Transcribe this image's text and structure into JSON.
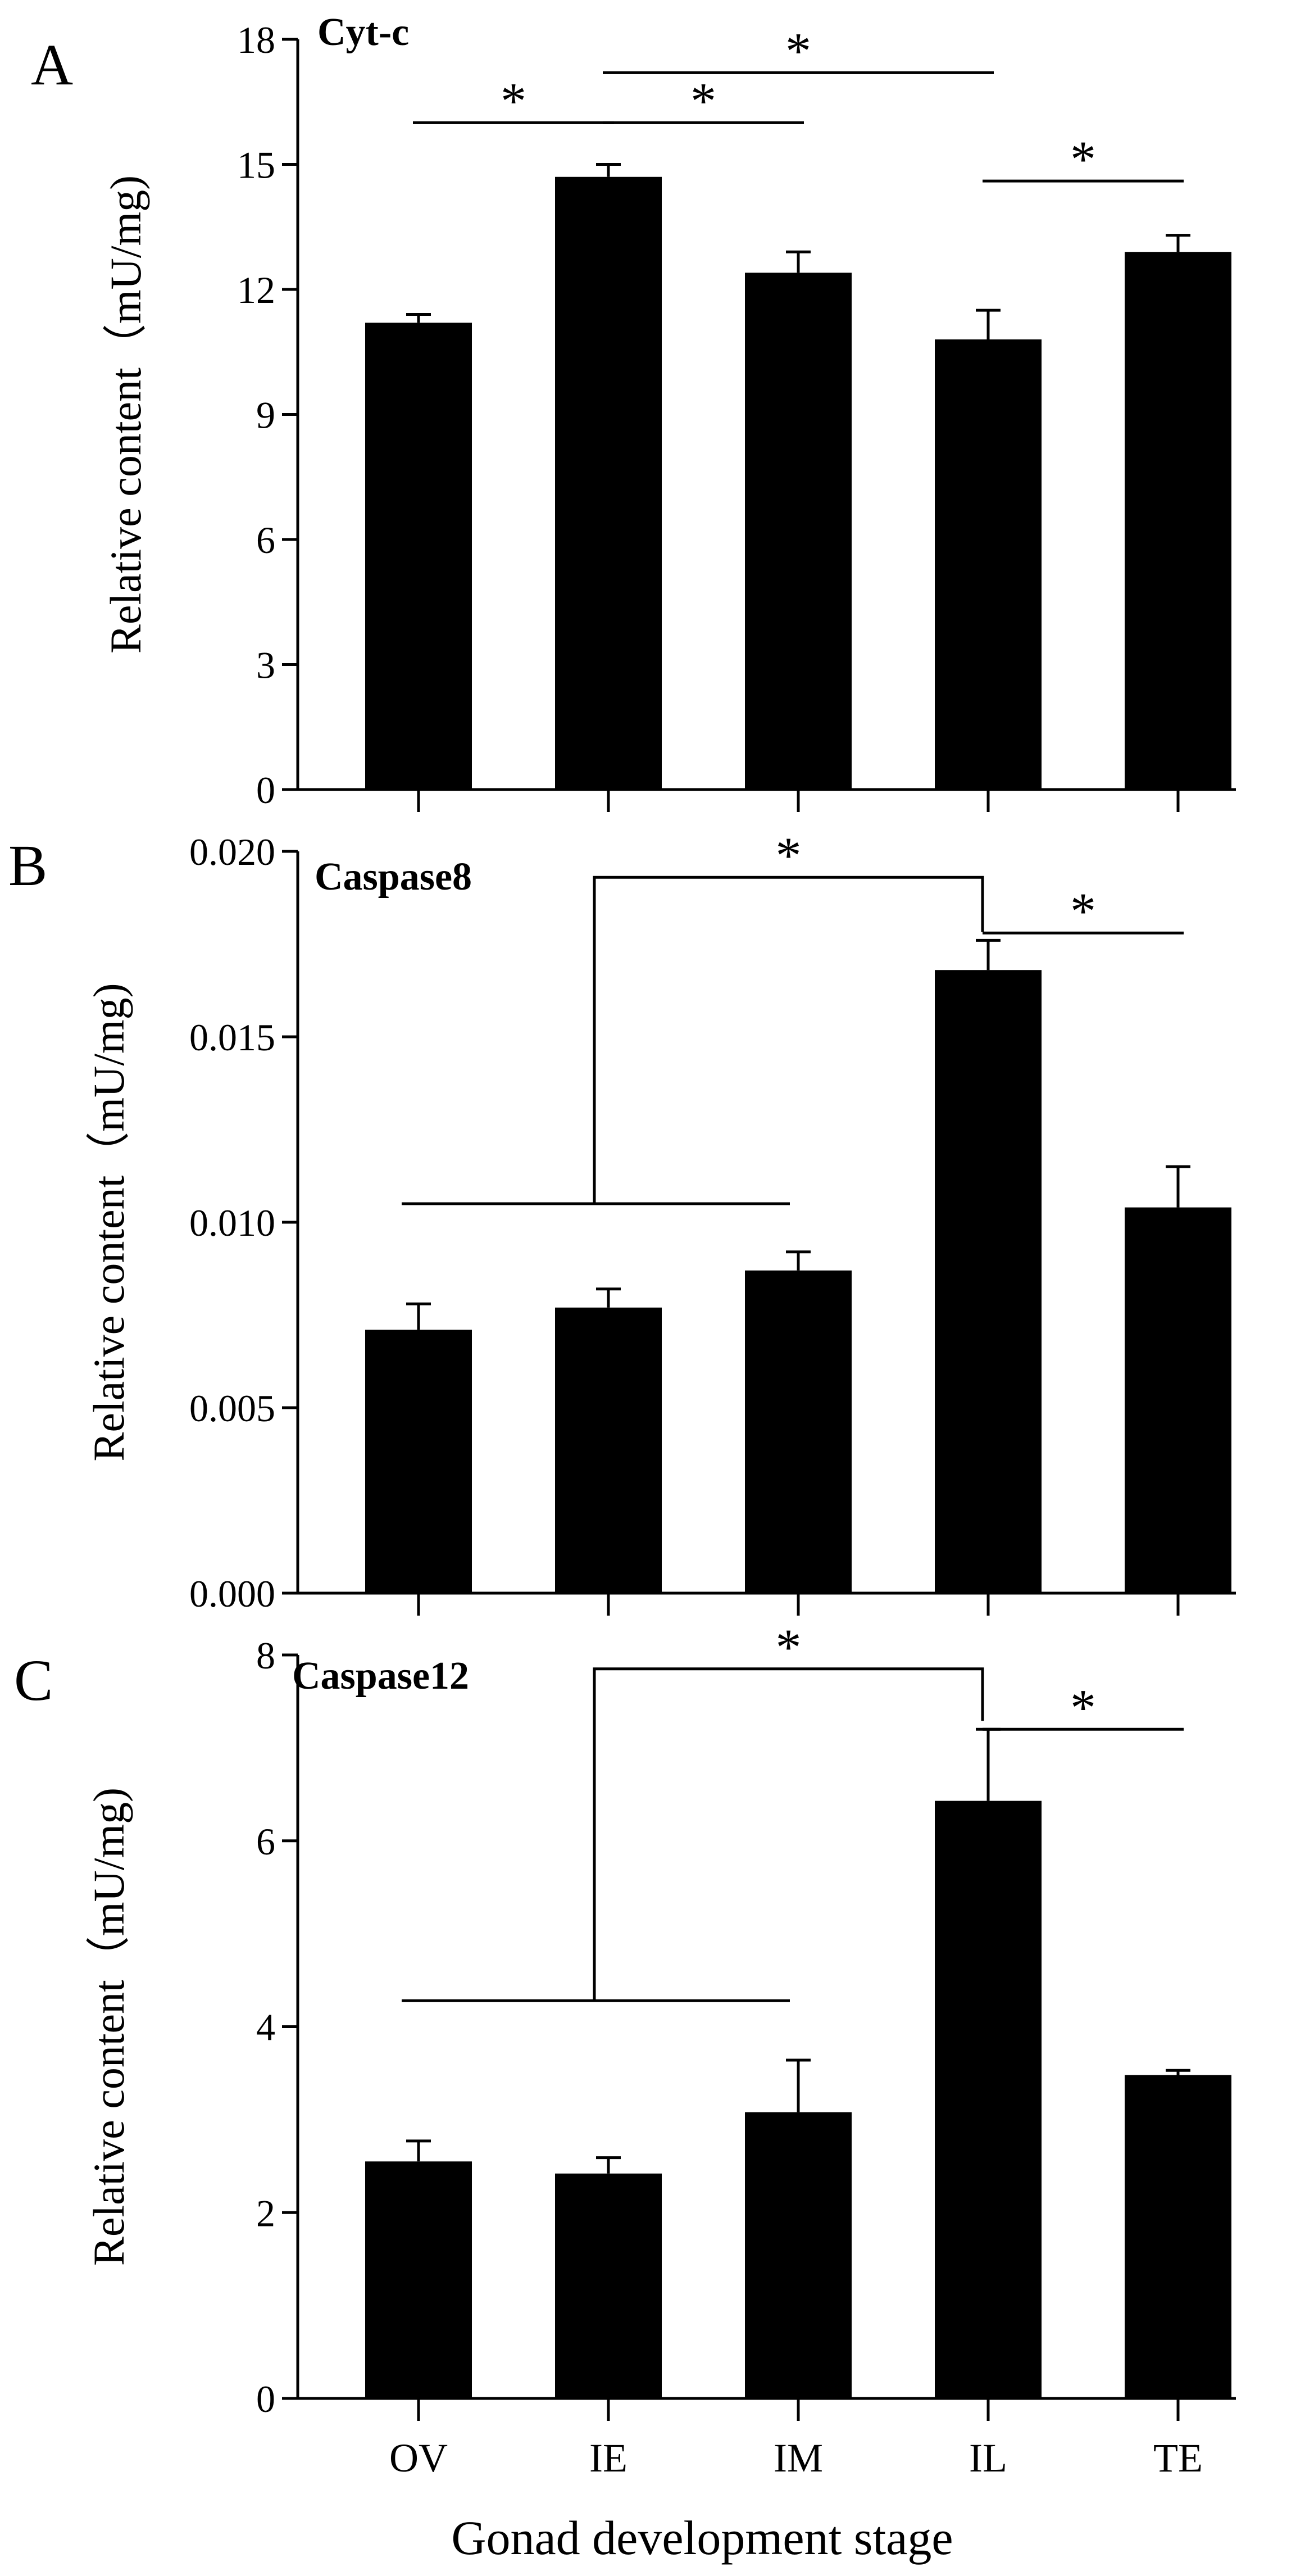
{
  "figure": {
    "x_axis_title": "Gonad development stage",
    "x_categories": [
      "OV",
      "IE",
      "IM",
      "IL",
      "TE"
    ],
    "bar_color": "#000000"
  },
  "chart_data": [
    {
      "type": "bar",
      "panel_label": "A",
      "title": "Cyt-c",
      "ylabel": "Relative content（mU/mg)",
      "xlabel": "",
      "categories": [
        "OV",
        "IE",
        "IM",
        "IL",
        "TE"
      ],
      "values": [
        11.2,
        14.7,
        12.4,
        10.8,
        12.9
      ],
      "errors": [
        0.2,
        0.3,
        0.5,
        0.7,
        0.4
      ],
      "ylim": [
        0,
        18
      ],
      "yticks": [
        0,
        3,
        6,
        9,
        12,
        15,
        18
      ],
      "ytick_labels": [
        "0",
        "3",
        "6",
        "9",
        "12",
        "15",
        "18"
      ],
      "significance": [
        {
          "kind": "line",
          "from": 0,
          "to": 1,
          "y": 16.0,
          "label": "*"
        },
        {
          "kind": "line",
          "from": 1,
          "to": 2,
          "y": 16.0,
          "label": "*"
        },
        {
          "kind": "line",
          "from": 1,
          "to": 3,
          "y": 17.2,
          "label": "*"
        },
        {
          "kind": "line",
          "from": 3,
          "to": 4,
          "y": 14.6,
          "label": "*"
        }
      ]
    },
    {
      "type": "bar",
      "panel_label": "B",
      "title": "Caspase8",
      "ylabel": "Relative content（mU/mg)",
      "xlabel": "",
      "categories": [
        "OV",
        "IE",
        "IM",
        "IL",
        "TE"
      ],
      "values": [
        0.0071,
        0.0077,
        0.0087,
        0.0168,
        0.0104
      ],
      "errors": [
        0.0007,
        0.0005,
        0.0005,
        0.0008,
        0.0011
      ],
      "ylim": [
        0,
        0.02
      ],
      "yticks": [
        0,
        0.005,
        0.01,
        0.015,
        0.02
      ],
      "ytick_labels": [
        "0.000",
        "0.005",
        "0.010",
        "0.015",
        "0.020"
      ],
      "significance": [
        {
          "kind": "group",
          "group_from": 0,
          "group_to": 2,
          "group_y": 0.0105,
          "riser_from": 1,
          "to": 3,
          "y": 0.0193,
          "label": "*"
        },
        {
          "kind": "line",
          "from": 3,
          "to": 4,
          "y": 0.0178,
          "label": "*"
        }
      ]
    },
    {
      "type": "bar",
      "panel_label": "C",
      "title": "Caspase12",
      "ylabel": "Relative content（mU/mg)",
      "xlabel": "Gonad development stage",
      "categories": [
        "OV",
        "IE",
        "IM",
        "IL",
        "TE"
      ],
      "values": [
        2.55,
        2.42,
        3.08,
        6.43,
        3.48
      ],
      "errors": [
        0.22,
        0.17,
        0.56,
        0.77,
        0.05
      ],
      "ylim": [
        0,
        8
      ],
      "yticks": [
        0,
        2,
        4,
        6,
        8
      ],
      "ytick_labels": [
        "0",
        "2",
        "4",
        "6",
        "8"
      ],
      "significance": [
        {
          "kind": "group",
          "group_from": 0,
          "group_to": 2,
          "group_y": 4.28,
          "riser_from": 1,
          "to": 3,
          "y": 7.85,
          "label": "*"
        },
        {
          "kind": "line",
          "from": 3,
          "to": 4,
          "y": 7.2,
          "label": "*"
        }
      ]
    }
  ]
}
